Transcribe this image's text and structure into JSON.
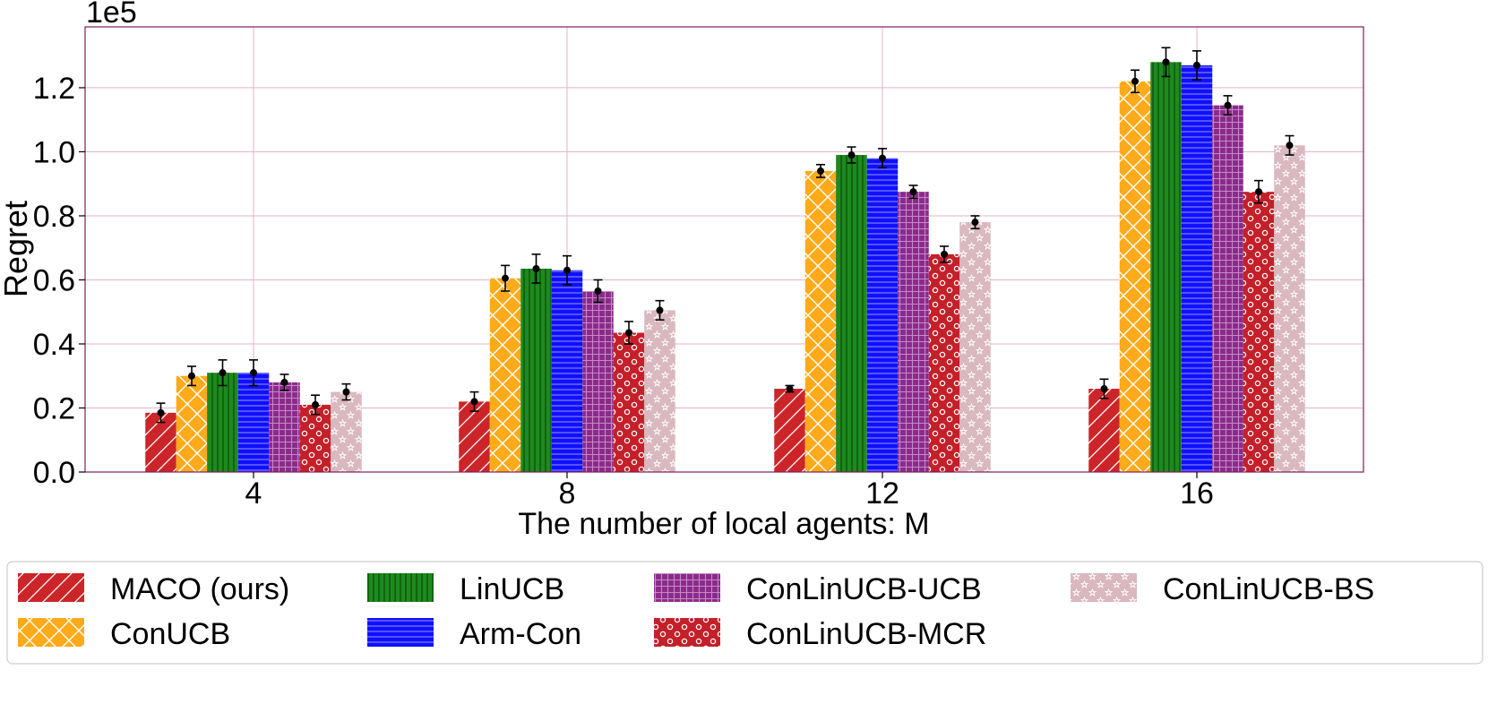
{
  "chart_data": {
    "type": "bar",
    "title": "",
    "xlabel": "The number of local agents: M",
    "ylabel": "Regret",
    "y_multiplier_label": "1e5",
    "categories": [
      "4",
      "8",
      "12",
      "16"
    ],
    "ylim": [
      0,
      1.39
    ],
    "yticks": [
      "0.0",
      "0.2",
      "0.4",
      "0.6",
      "0.8",
      "1.0",
      "1.2"
    ],
    "grid": true,
    "legend_position": "bottom",
    "series": [
      {
        "name": "MACO (ours)",
        "color": "#cc2529",
        "pattern": "diag",
        "values": [
          0.185,
          0.22,
          0.26,
          0.26
        ],
        "errors": [
          0.03,
          0.03,
          0.01,
          0.03
        ]
      },
      {
        "name": "ConUCB",
        "color": "#ffaa1a",
        "pattern": "cross",
        "values": [
          0.3,
          0.605,
          0.94,
          1.22
        ],
        "errors": [
          0.03,
          0.04,
          0.02,
          0.035
        ]
      },
      {
        "name": "LinUCB",
        "color": "#1d8a1d",
        "pattern": "vert",
        "values": [
          0.31,
          0.635,
          0.99,
          1.28
        ],
        "errors": [
          0.04,
          0.045,
          0.025,
          0.045
        ]
      },
      {
        "name": "Arm-Con",
        "color": "#1010ff",
        "pattern": "horiz",
        "values": [
          0.31,
          0.63,
          0.98,
          1.27
        ],
        "errors": [
          0.04,
          0.045,
          0.03,
          0.045
        ]
      },
      {
        "name": "ConLinUCB-UCB",
        "color": "#8b2a8b",
        "pattern": "grid",
        "values": [
          0.28,
          0.565,
          0.875,
          1.145
        ],
        "errors": [
          0.025,
          0.035,
          0.02,
          0.03
        ]
      },
      {
        "name": "ConLinUCB-MCR",
        "color": "#c4202a",
        "pattern": "dots",
        "values": [
          0.21,
          0.435,
          0.68,
          0.875
        ],
        "errors": [
          0.03,
          0.035,
          0.025,
          0.035
        ]
      },
      {
        "name": "ConLinUCB-BS",
        "color": "#d9b8c0",
        "pattern": "stars",
        "values": [
          0.25,
          0.505,
          0.78,
          1.02
        ],
        "errors": [
          0.025,
          0.03,
          0.02,
          0.03
        ]
      }
    ]
  }
}
